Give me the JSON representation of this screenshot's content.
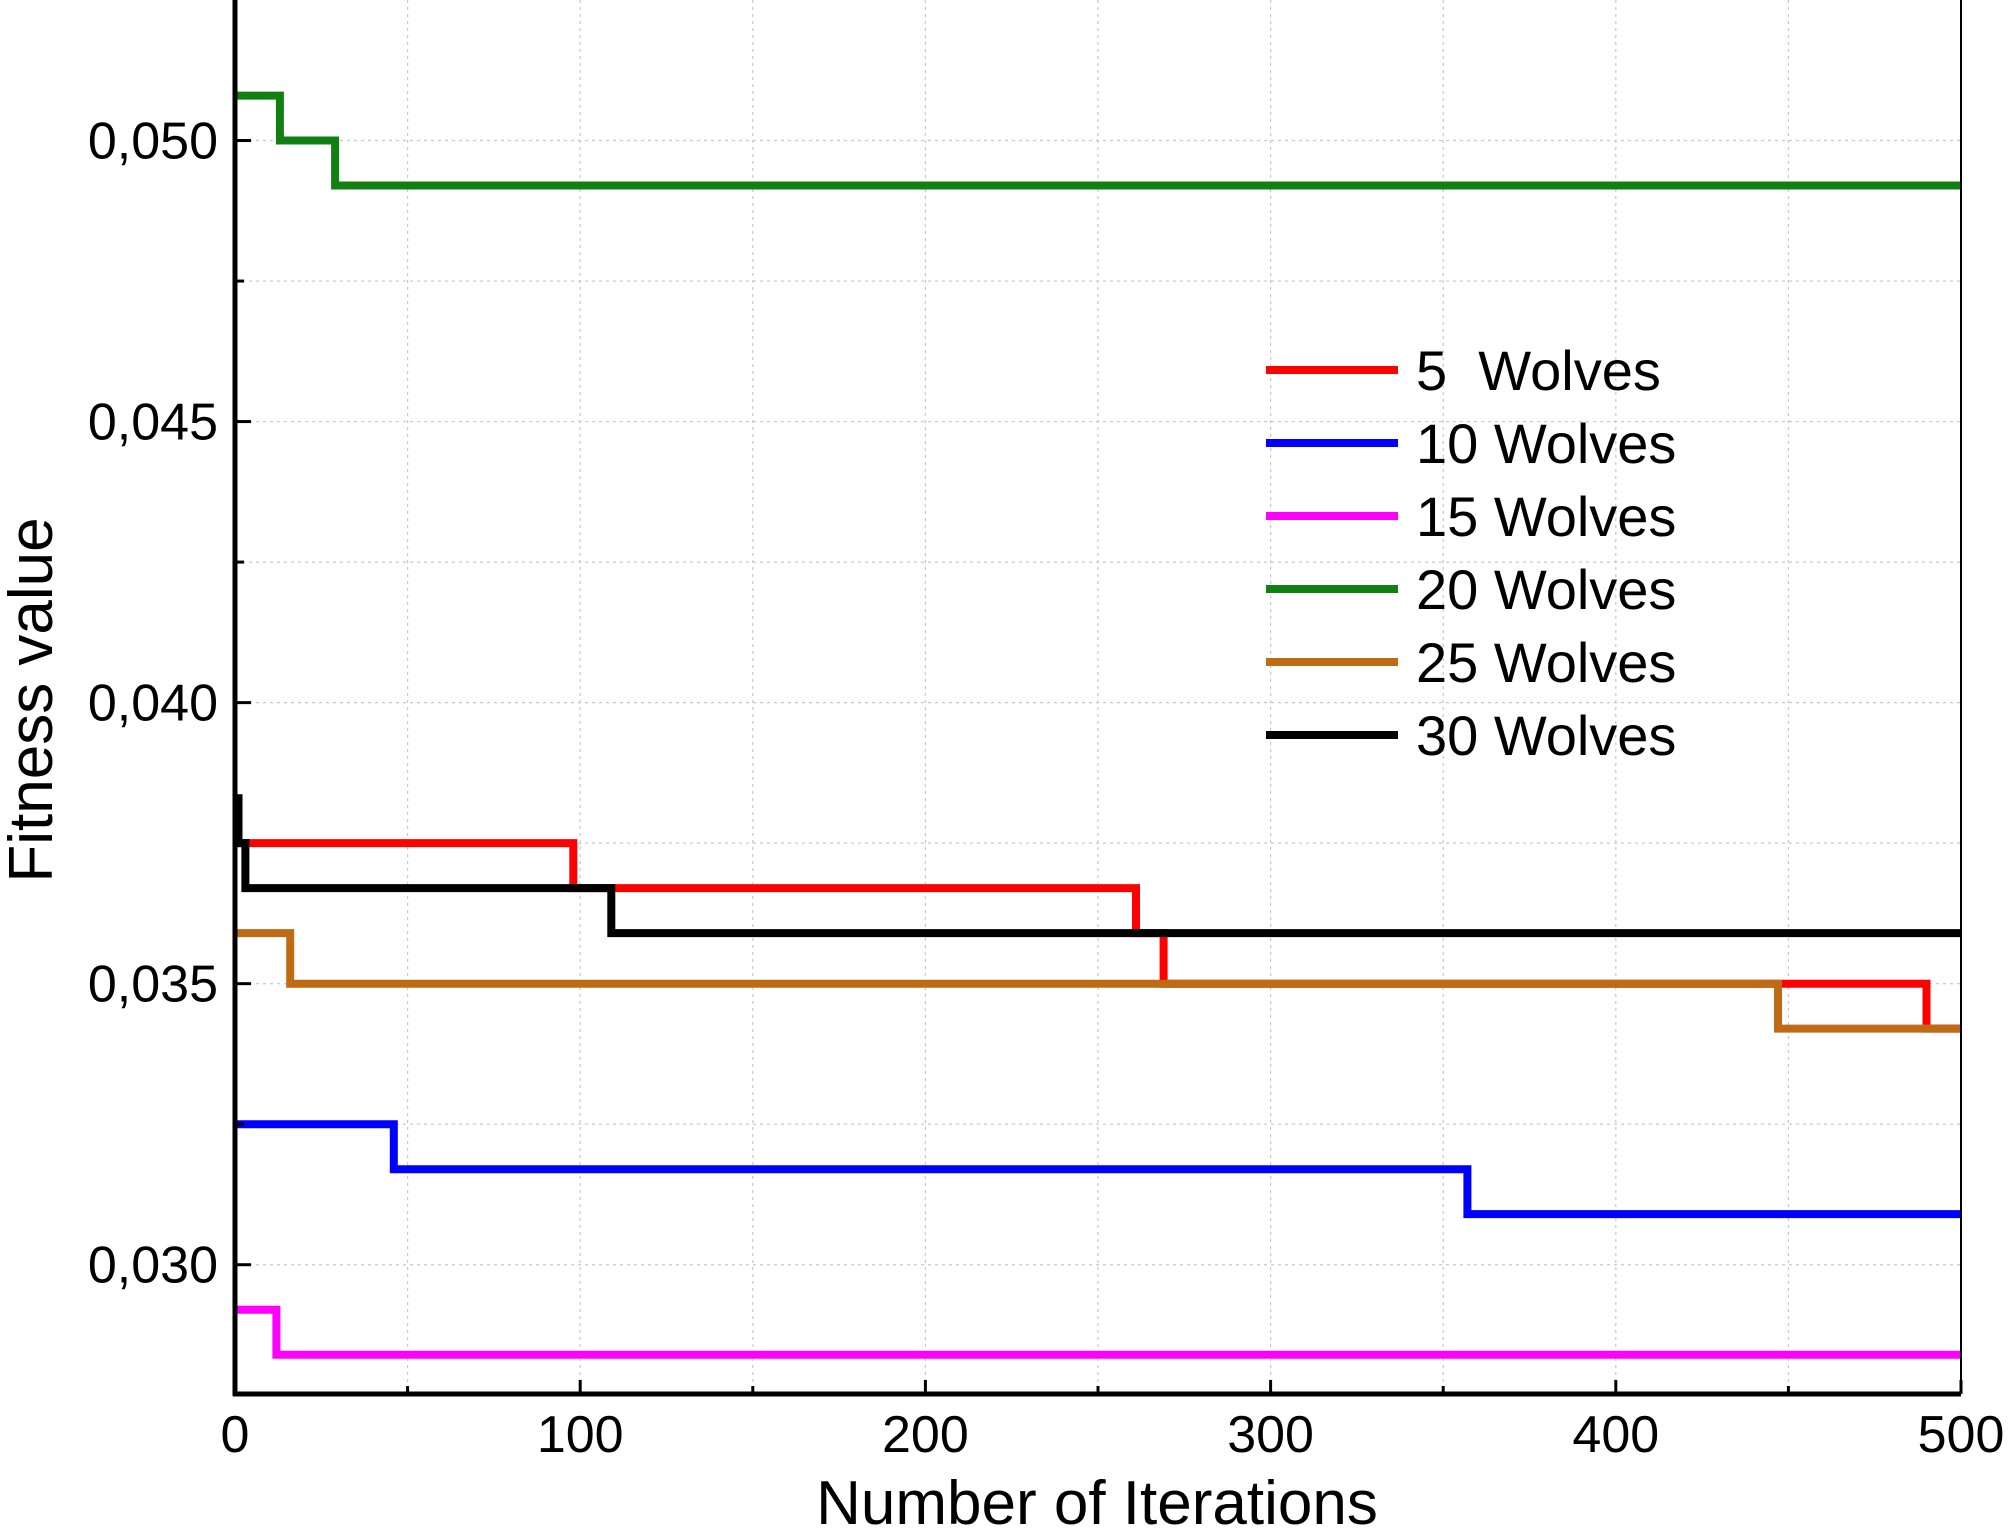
{
  "chart_data": {
    "type": "line",
    "step": true,
    "title": "",
    "xlabel": "Number  of Iterations",
    "ylabel": "Fitness value",
    "xlim": [
      0,
      500
    ],
    "ylim": [
      0.0277,
      0.0525
    ],
    "x_ticks": [
      {
        "value": 0,
        "label": "0"
      },
      {
        "value": 100,
        "label": "100"
      },
      {
        "value": 200,
        "label": "200"
      },
      {
        "value": 300,
        "label": "300"
      },
      {
        "value": 400,
        "label": "400"
      },
      {
        "value": 500,
        "label": "500"
      }
    ],
    "y_ticks": [
      {
        "value": 0.03,
        "label": "0,030"
      },
      {
        "value": 0.035,
        "label": "0,035"
      },
      {
        "value": 0.04,
        "label": "0,040"
      },
      {
        "value": 0.045,
        "label": "0,045"
      },
      {
        "value": 0.05,
        "label": "0,050"
      }
    ],
    "grid": true,
    "legend_position": "right",
    "series": [
      {
        "name": "5  Wolves",
        "color": "#ff0000",
        "points": [
          [
            0,
            0.0375
          ],
          [
            98,
            0.0375
          ],
          [
            98,
            0.0367
          ],
          [
            261,
            0.0367
          ],
          [
            261,
            0.0359
          ],
          [
            269,
            0.0359
          ],
          [
            269,
            0.035
          ],
          [
            490,
            0.035
          ],
          [
            490,
            0.0342
          ],
          [
            500,
            0.0342
          ]
        ]
      },
      {
        "name": "10 Wolves",
        "color": "#0000ff",
        "points": [
          [
            0,
            0.0325
          ],
          [
            46,
            0.0325
          ],
          [
            46,
            0.0317
          ],
          [
            357,
            0.0317
          ],
          [
            357,
            0.0309
          ],
          [
            500,
            0.0309
          ]
        ]
      },
      {
        "name": "15 Wolves",
        "color": "#ff00ff",
        "points": [
          [
            0,
            0.0292
          ],
          [
            12,
            0.0292
          ],
          [
            12,
            0.0284
          ],
          [
            500,
            0.0284
          ]
        ]
      },
      {
        "name": "20 Wolves",
        "color": "#118011",
        "points": [
          [
            0,
            0.0508
          ],
          [
            13,
            0.0508
          ],
          [
            13,
            0.05
          ],
          [
            29,
            0.05
          ],
          [
            29,
            0.0492
          ],
          [
            500,
            0.0492
          ]
        ]
      },
      {
        "name": "25 Wolves",
        "color": "#bf6a14",
        "points": [
          [
            0,
            0.0359
          ],
          [
            16,
            0.0359
          ],
          [
            16,
            0.035
          ],
          [
            447,
            0.035
          ],
          [
            447,
            0.0342
          ],
          [
            500,
            0.0342
          ]
        ]
      },
      {
        "name": "30 Wolves",
        "color": "#000000",
        "points": [
          [
            0,
            0.0383
          ],
          [
            1,
            0.0383
          ],
          [
            1,
            0.0375
          ],
          [
            3,
            0.0375
          ],
          [
            3,
            0.0367
          ],
          [
            109,
            0.0367
          ],
          [
            109,
            0.0359
          ],
          [
            500,
            0.0359
          ]
        ]
      }
    ]
  }
}
